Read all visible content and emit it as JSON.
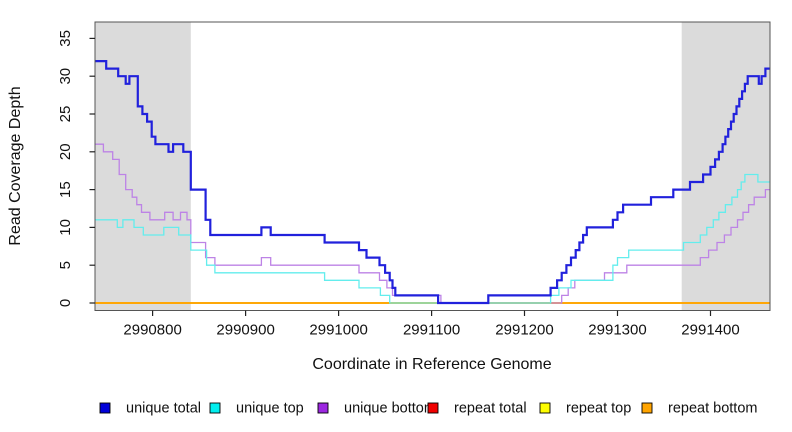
{
  "chart_data": {
    "type": "line",
    "subtype": "step-coverage-plot",
    "title": "",
    "xlabel": "Coordinate in Reference Genome",
    "ylabel": "Read Coverage Depth",
    "xlim": [
      2990738,
      2991464
    ],
    "ylim": [
      0,
      35
    ],
    "x_ticks": [
      2990800,
      2990900,
      2991000,
      2991100,
      2991200,
      2991300,
      2991400
    ],
    "y_ticks": [
      0,
      5,
      10,
      15,
      20,
      25,
      30,
      35
    ],
    "grid": false,
    "legend_position": "bottom",
    "shaded_regions": [
      {
        "x0": 2990738,
        "x1": 2990841
      },
      {
        "x0": 2991369,
        "x1": 2991464
      }
    ],
    "series": [
      {
        "name": "unique total",
        "line_color": "#2121DC",
        "legend_color": "#0000D9",
        "line_width": 2.2,
        "points": [
          [
            2990738,
            32
          ],
          [
            2990750,
            31
          ],
          [
            2990763,
            30
          ],
          [
            2990771,
            29
          ],
          [
            2990775,
            30
          ],
          [
            2990784,
            26
          ],
          [
            2990789,
            25
          ],
          [
            2990794,
            24
          ],
          [
            2990799,
            22
          ],
          [
            2990803,
            21
          ],
          [
            2990817,
            20
          ],
          [
            2990822,
            21
          ],
          [
            2990833,
            20
          ],
          [
            2990841,
            15
          ],
          [
            2990857,
            11
          ],
          [
            2990862,
            9
          ],
          [
            2990917,
            10
          ],
          [
            2990927,
            9
          ],
          [
            2990985,
            8
          ],
          [
            2991022,
            7
          ],
          [
            2991030,
            6
          ],
          [
            2991044,
            5
          ],
          [
            2991050,
            4
          ],
          [
            2991055,
            3
          ],
          [
            2991058,
            2
          ],
          [
            2991061,
            1
          ],
          [
            2991107,
            0
          ],
          [
            2991161,
            1
          ],
          [
            2991228,
            2
          ],
          [
            2991235,
            3
          ],
          [
            2991240,
            4
          ],
          [
            2991245,
            5
          ],
          [
            2991250,
            6
          ],
          [
            2991255,
            7
          ],
          [
            2991259,
            8
          ],
          [
            2991263,
            9
          ],
          [
            2991267,
            10
          ],
          [
            2991295,
            11
          ],
          [
            2991300,
            12
          ],
          [
            2991306,
            13
          ],
          [
            2991336,
            14
          ],
          [
            2991360,
            15
          ],
          [
            2991378,
            16
          ],
          [
            2991392,
            17
          ],
          [
            2991400,
            18
          ],
          [
            2991405,
            19
          ],
          [
            2991409,
            20
          ],
          [
            2991413,
            21
          ],
          [
            2991416,
            22
          ],
          [
            2991419,
            23
          ],
          [
            2991422,
            24
          ],
          [
            2991425,
            25
          ],
          [
            2991428,
            26
          ],
          [
            2991431,
            27
          ],
          [
            2991434,
            28
          ],
          [
            2991437,
            29
          ],
          [
            2991440,
            30
          ],
          [
            2991452,
            29
          ],
          [
            2991455,
            30
          ],
          [
            2991459,
            31
          ]
        ]
      },
      {
        "name": "unique top",
        "line_color": "#63EDED",
        "legend_color": "#00EEEE",
        "line_width": 1.3,
        "points": [
          [
            2990738,
            11
          ],
          [
            2990762,
            10
          ],
          [
            2990768,
            11
          ],
          [
            2990780,
            10
          ],
          [
            2990790,
            9
          ],
          [
            2990812,
            10
          ],
          [
            2990828,
            9
          ],
          [
            2990841,
            7
          ],
          [
            2990858,
            5
          ],
          [
            2990867,
            4
          ],
          [
            2990985,
            3
          ],
          [
            2991022,
            2
          ],
          [
            2991045,
            1
          ],
          [
            2991055,
            0
          ],
          [
            2991228,
            1
          ],
          [
            2991237,
            2
          ],
          [
            2991250,
            3
          ],
          [
            2991295,
            5
          ],
          [
            2991300,
            6
          ],
          [
            2991312,
            7
          ],
          [
            2991371,
            8
          ],
          [
            2991389,
            9
          ],
          [
            2991396,
            10
          ],
          [
            2991403,
            11
          ],
          [
            2991409,
            12
          ],
          [
            2991416,
            13
          ],
          [
            2991423,
            14
          ],
          [
            2991429,
            15
          ],
          [
            2991433,
            16
          ],
          [
            2991437,
            17
          ],
          [
            2991451,
            16
          ]
        ]
      },
      {
        "name": "unique bottom",
        "line_color": "#BD83E6",
        "legend_color": "#9C27E0",
        "line_width": 1.3,
        "points": [
          [
            2990738,
            21
          ],
          [
            2990747,
            20
          ],
          [
            2990757,
            19
          ],
          [
            2990764,
            17
          ],
          [
            2990771,
            15
          ],
          [
            2990778,
            14
          ],
          [
            2990783,
            13
          ],
          [
            2990788,
            12
          ],
          [
            2990797,
            11
          ],
          [
            2990813,
            12
          ],
          [
            2990822,
            11
          ],
          [
            2990830,
            12
          ],
          [
            2990837,
            11
          ],
          [
            2990841,
            8
          ],
          [
            2990857,
            6
          ],
          [
            2990867,
            5
          ],
          [
            2990917,
            6
          ],
          [
            2990927,
            5
          ],
          [
            2991022,
            4
          ],
          [
            2991044,
            3
          ],
          [
            2991052,
            2
          ],
          [
            2991058,
            1
          ],
          [
            2991110,
            0
          ],
          [
            2991240,
            1
          ],
          [
            2991247,
            2
          ],
          [
            2991254,
            3
          ],
          [
            2991286,
            4
          ],
          [
            2991310,
            5
          ],
          [
            2991389,
            6
          ],
          [
            2991398,
            7
          ],
          [
            2991407,
            8
          ],
          [
            2991415,
            9
          ],
          [
            2991422,
            10
          ],
          [
            2991429,
            11
          ],
          [
            2991435,
            12
          ],
          [
            2991441,
            13
          ],
          [
            2991447,
            14
          ],
          [
            2991459,
            15
          ]
        ]
      },
      {
        "name": "repeat total",
        "line_color": "#F00000",
        "legend_color": "#F00000",
        "line_width": 1.4,
        "points": [
          [
            2990738,
            0
          ]
        ]
      },
      {
        "name": "repeat top",
        "line_color": "#FFFF00",
        "legend_color": "#FFFF00",
        "line_width": 1.4,
        "points": [
          [
            2990738,
            0
          ]
        ]
      },
      {
        "name": "repeat bottom",
        "line_color": "#FFA400",
        "legend_color": "#FFA400",
        "line_width": 1.8,
        "points": [
          [
            2990738,
            0
          ]
        ]
      }
    ]
  },
  "colors": {
    "shade": "#DBDBDB",
    "box": "#555555",
    "tick": "#222222",
    "text": "#111111",
    "background": "#FFFFFF"
  }
}
